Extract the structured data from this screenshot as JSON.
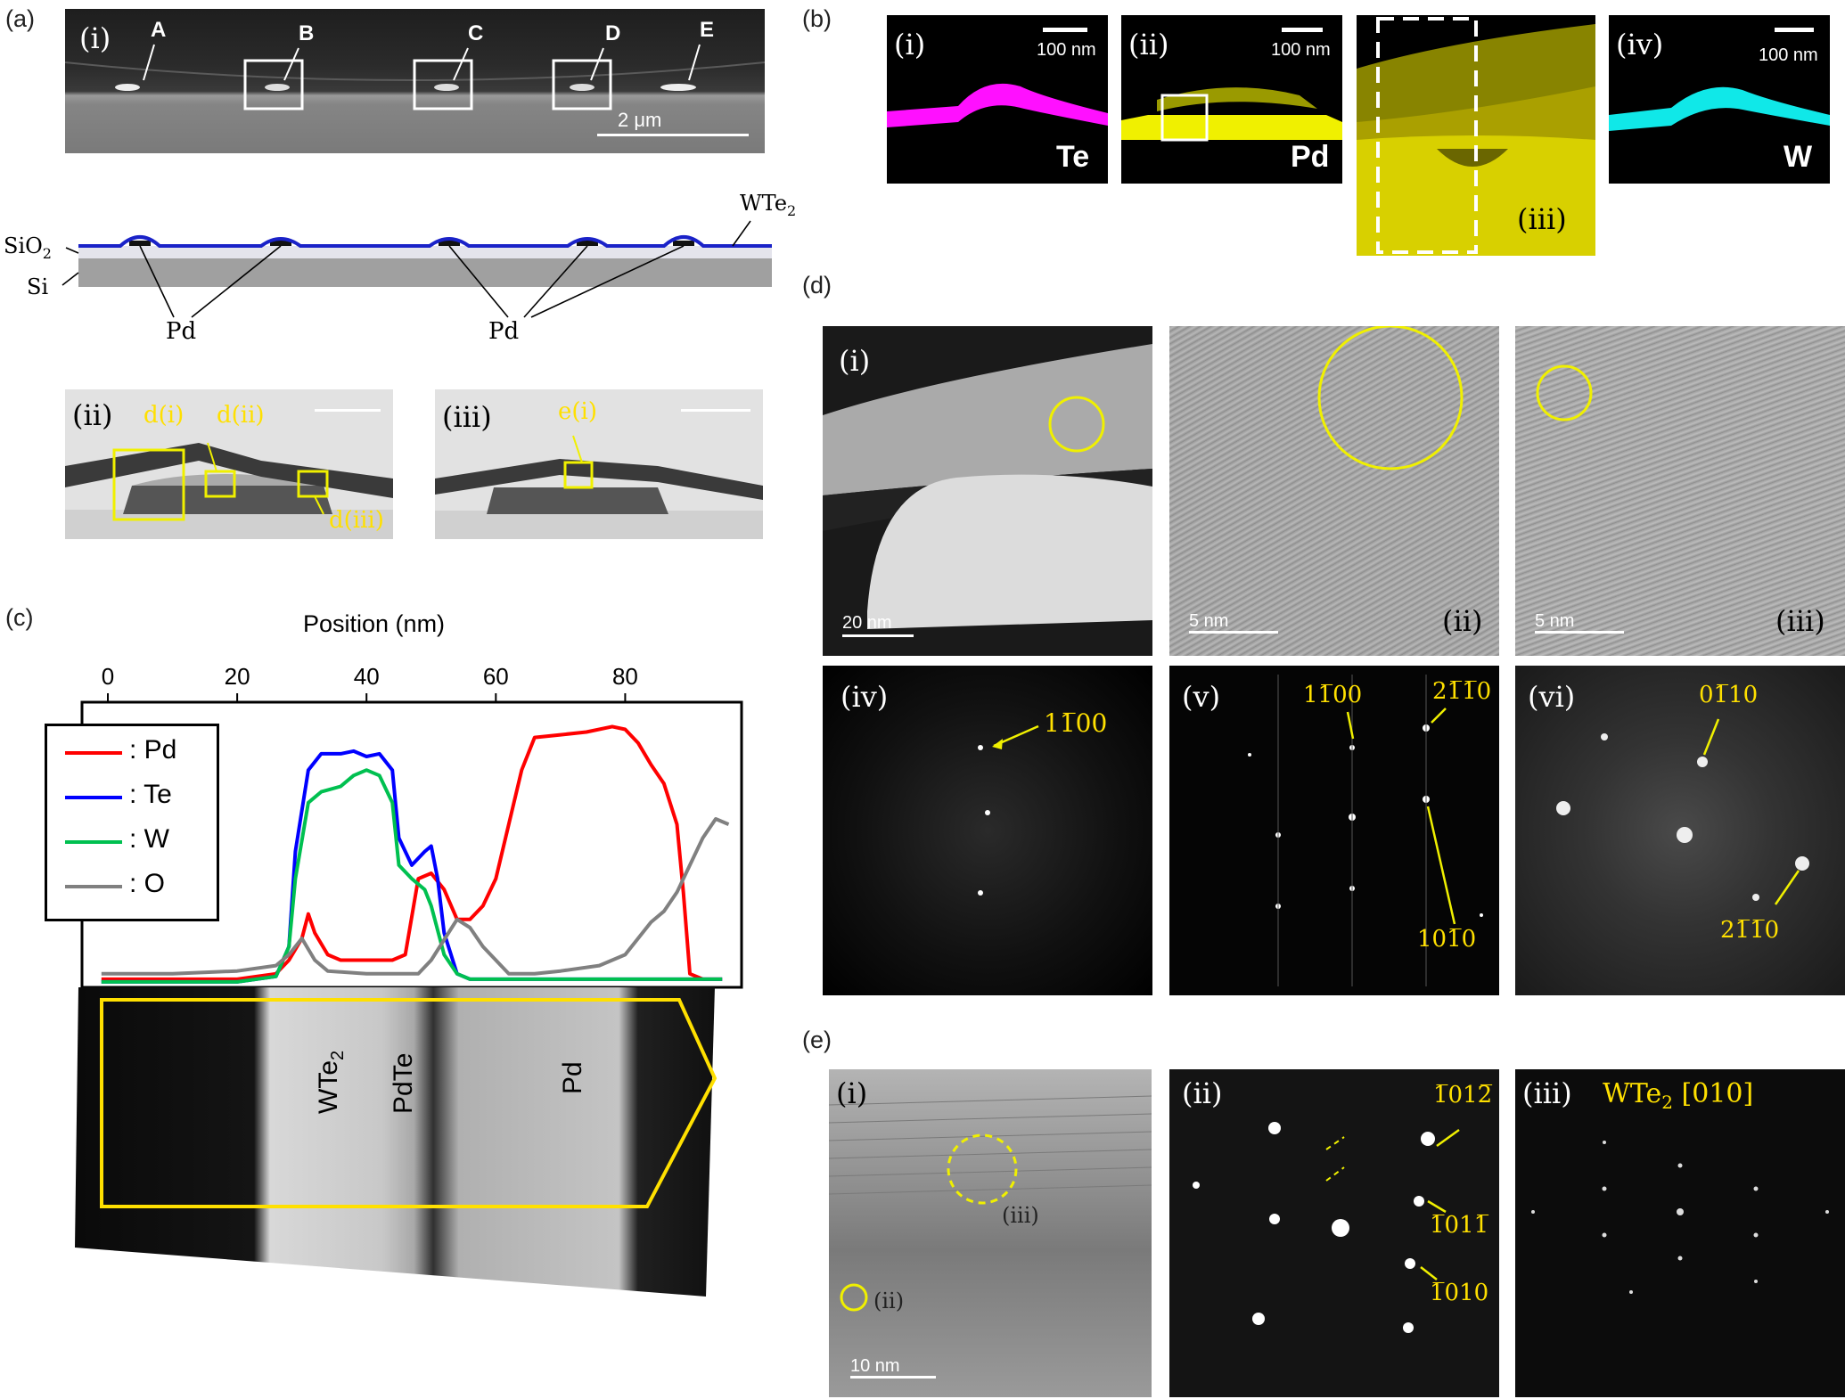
{
  "panels": {
    "a": "(a)",
    "b": "(b)",
    "c": "(c)",
    "d": "(d)",
    "e": "(e)"
  },
  "roman": {
    "i": "(i)",
    "ii": "(ii)",
    "iii": "(iii)",
    "iv": "(iv)",
    "v": "(v)",
    "vi": "(vi)"
  },
  "a": {
    "sem_letters": [
      "A",
      "B",
      "C",
      "D",
      "E"
    ],
    "sem_scale": "2 μm",
    "schematic": {
      "wte2": "WTe",
      "wte2_sub": "2",
      "sio2": "SiO",
      "sio2_sub": "2",
      "si": "Si",
      "pd_left": "Pd",
      "pd_right": "Pd"
    },
    "tem_ii_boxes": [
      "d(i)",
      "d(ii)",
      "d(iii)"
    ],
    "tem_iii_box": "e(i)"
  },
  "b": {
    "scale": "100 nm",
    "elements": [
      "Te",
      "Pd",
      "W"
    ],
    "colors": {
      "te": "#ff10ff",
      "pd": "#f0f000",
      "w": "#10e8e8"
    }
  },
  "c": {
    "x_title": "Position (nm)",
    "x_ticks": [
      "0",
      "20",
      "40",
      "60",
      "80"
    ],
    "legend": [
      {
        "label": ": Pd",
        "color": "#ff0000"
      },
      {
        "label": ": Te",
        "color": "#0000ff"
      },
      {
        "label": ": W",
        "color": "#00c050"
      },
      {
        "label": ": O",
        "color": "#808080"
      }
    ],
    "regions": [
      "WTe",
      "PdTe",
      "Pd"
    ],
    "region_sub": "2"
  },
  "d": {
    "scales": [
      "20 nm",
      "5 nm",
      "5 nm"
    ],
    "iv_spot": "1̅0̅",
    "labels": {
      "iv": "11̅00",
      "v_a": "11̅00",
      "v_b": "21̅1̅0",
      "v_c": "101̅0",
      "vi_a": "01̅10",
      "vi_b": "21̅1̅0"
    }
  },
  "e": {
    "scale": "10 nm",
    "i_sub_iii": "(iii)",
    "i_sub_ii": "(ii)",
    "ii_labels": [
      "1̅012̅",
      "1̅011̅",
      "1̅010"
    ],
    "iii_title": "WTe",
    "iii_title_sub": "2",
    "iii_zone": " [010]"
  },
  "chart_data": {
    "type": "line",
    "title": "",
    "xlabel": "Position (nm)",
    "ylabel": "",
    "xlim": [
      -4,
      98
    ],
    "x_ticks": [
      0,
      20,
      40,
      60,
      80
    ],
    "legend_placement": "top-left",
    "series": [
      {
        "name": "Pd",
        "color": "#ff0000",
        "x": [
          -1,
          10,
          20,
          26,
          28,
          30,
          31,
          32,
          34,
          36,
          40,
          44,
          46,
          48,
          50,
          52,
          54,
          56,
          58,
          60,
          62,
          64,
          66,
          70,
          74,
          78,
          80,
          82,
          84,
          86,
          88,
          89,
          90,
          92,
          95
        ],
        "y": [
          0.03,
          0.03,
          0.03,
          0.05,
          0.1,
          0.18,
          0.27,
          0.2,
          0.12,
          0.1,
          0.1,
          0.1,
          0.12,
          0.4,
          0.42,
          0.36,
          0.25,
          0.25,
          0.3,
          0.4,
          0.6,
          0.8,
          0.92,
          0.93,
          0.94,
          0.96,
          0.95,
          0.9,
          0.82,
          0.75,
          0.6,
          0.35,
          0.05,
          0.03,
          0.03
        ]
      },
      {
        "name": "Te",
        "color": "#0000ff",
        "x": [
          -1,
          10,
          20,
          26,
          28,
          29,
          31,
          33,
          36,
          38,
          40,
          42,
          44,
          45,
          47,
          49,
          50,
          51,
          52,
          54,
          56,
          60,
          80,
          95
        ],
        "y": [
          0.02,
          0.02,
          0.02,
          0.04,
          0.15,
          0.5,
          0.8,
          0.86,
          0.86,
          0.87,
          0.85,
          0.86,
          0.8,
          0.55,
          0.45,
          0.5,
          0.52,
          0.4,
          0.2,
          0.05,
          0.03,
          0.03,
          0.03,
          0.03
        ]
      },
      {
        "name": "W",
        "color": "#00c050",
        "x": [
          -1,
          10,
          20,
          26,
          28,
          29,
          31,
          33,
          36,
          38,
          40,
          42,
          44,
          45,
          47,
          49,
          50,
          52,
          54,
          56,
          60,
          80,
          95
        ],
        "y": [
          0.02,
          0.02,
          0.02,
          0.04,
          0.15,
          0.4,
          0.68,
          0.72,
          0.74,
          0.78,
          0.8,
          0.78,
          0.68,
          0.45,
          0.4,
          0.36,
          0.3,
          0.12,
          0.05,
          0.03,
          0.03,
          0.03,
          0.03
        ]
      },
      {
        "name": "O",
        "color": "#808080",
        "x": [
          -1,
          10,
          20,
          26,
          28,
          30,
          32,
          34,
          40,
          46,
          48,
          50,
          54,
          56,
          58,
          60,
          62,
          66,
          70,
          76,
          80,
          82,
          84,
          86,
          88,
          90,
          92,
          94,
          96
        ],
        "y": [
          0.05,
          0.05,
          0.06,
          0.08,
          0.12,
          0.18,
          0.1,
          0.06,
          0.05,
          0.05,
          0.05,
          0.1,
          0.25,
          0.22,
          0.15,
          0.1,
          0.05,
          0.05,
          0.06,
          0.08,
          0.12,
          0.18,
          0.24,
          0.28,
          0.35,
          0.45,
          0.55,
          0.62,
          0.6
        ]
      }
    ]
  }
}
